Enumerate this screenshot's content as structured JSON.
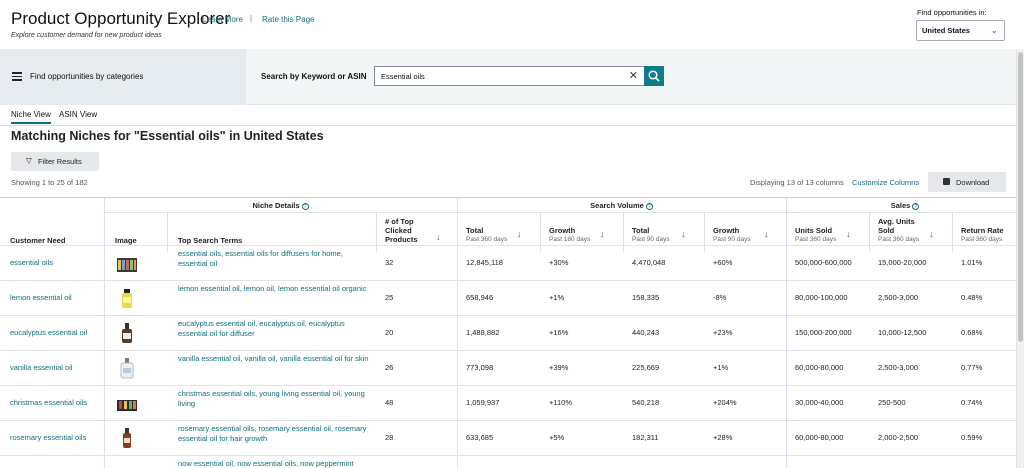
{
  "header": {
    "title": "Product Opportunity Explorer",
    "learn_more": "Learn More",
    "separator": "|",
    "rate_page": "Rate this Page",
    "subtitle": "Explore customer demand for new product ideas",
    "country_label": "Find opportunities in:",
    "country_value": "United States"
  },
  "search": {
    "categories_label": "Find opportunities by categories",
    "label": "Search by Keyword or ASIN",
    "value": "Essential oils"
  },
  "tabs": [
    "Niche View",
    "ASIN View"
  ],
  "main": {
    "title": "Matching Niches for \"Essential oils\" in United States",
    "filter_label": "Filter Results",
    "showing": "Showing 1 to 25 of 182",
    "displaying": "Displaying 13 of 13 columns",
    "customize": "Customize Columns",
    "download": "Download"
  },
  "table": {
    "groups": {
      "niche": "Niche Details",
      "search_volume": "Search Volume",
      "sales": "Sales"
    },
    "headers": {
      "customer_need": "Customer Need",
      "image": "Image",
      "top_terms": "Top Search Terms",
      "clicked": "# of Top Clicked Products",
      "total360": "Total",
      "total360_sub": "Past 360 days",
      "growth180": "Growth",
      "growth180_sub": "Past 180 days",
      "total90": "Total",
      "total90_sub": "Past 90 days",
      "growth90": "Growth",
      "growth90_sub": "Past 90 days",
      "units": "Units Sold",
      "units_sub": "Past 360 days",
      "avg_units": "Avg. Units Sold",
      "avg_units_sub": "Past 360 days",
      "return": "Return Rate",
      "return_sub": "Past 360 days"
    },
    "rows": [
      {
        "need": "essential oils",
        "terms": "essential oils, essential oils for diffusers for home, essential oil",
        "clicked": "32",
        "total360": "12,845,118",
        "growth180": "+30%",
        "total90": "4,470,048",
        "growth90": "+60%",
        "units": "500,000-600,000",
        "avg": "15,000-20,000",
        "ret": "1.01%"
      },
      {
        "need": "lemon essential oil",
        "terms": "lemon essential oil, lemon oil, lemon essential oil organic",
        "clicked": "25",
        "total360": "658,946",
        "growth180": "+1%",
        "total90": "158,335",
        "growth90": "-8%",
        "units": "80,000-100,000",
        "avg": "2,500-3,000",
        "ret": "0.48%"
      },
      {
        "need": "eucalyptus essential oil",
        "terms": "eucalyptus essential oil, eucalyptus oil, eucalyptus essential oil for diffuser",
        "clicked": "20",
        "total360": "1,488,882",
        "growth180": "+16%",
        "total90": "440,243",
        "growth90": "+23%",
        "units": "150,000-200,000",
        "avg": "10,000-12,500",
        "ret": "0.68%"
      },
      {
        "need": "vanilla essential oil",
        "terms": "vanilla essential oil, vanilla oil, vanilla essential oil for skin",
        "clicked": "26",
        "total360": "773,098",
        "growth180": "+39%",
        "total90": "225,669",
        "growth90": "+1%",
        "units": "60,000-80,000",
        "avg": "2,500-3,000",
        "ret": "0.77%"
      },
      {
        "need": "christmas essential oils",
        "terms": "christmas essential oils, young living essential oil, young living",
        "clicked": "48",
        "total360": "1,059,937",
        "growth180": "+110%",
        "total90": "540,218",
        "growth90": "+204%",
        "units": "30,000-40,000",
        "avg": "250-500",
        "ret": "0.74%"
      },
      {
        "need": "rosemary essential oils",
        "terms": "rosemary essential oils, rosemary essential oil, rosemary essential oil for hair growth",
        "clicked": "28",
        "total360": "633,685",
        "growth180": "+5%",
        "total90": "182,311",
        "growth90": "+28%",
        "units": "60,000-80,000",
        "avg": "2,000-2,500",
        "ret": "0.59%"
      },
      {
        "need": "",
        "terms": "now essential oil, now essential oils, now peppermint",
        "clicked": "",
        "total360": "",
        "growth180": "",
        "total90": "",
        "growth90": "",
        "units": "",
        "avg": "",
        "ret": ""
      }
    ]
  },
  "colors": {
    "accent": "#0f6e7d",
    "search_button": "#0f7c8c"
  }
}
